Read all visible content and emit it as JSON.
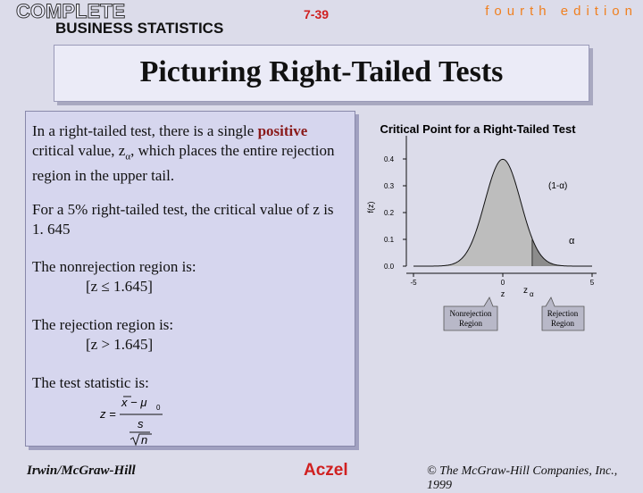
{
  "header": {
    "brand_line1": "COMPLETE",
    "brand_line2": "BUSINESS STATISTICS",
    "slide_number": "7-39",
    "edition": "fourth edition"
  },
  "title": "Picturing Right-Tailed Tests",
  "body": {
    "p1": [
      "In a right-tailed test, there is a single ",
      "positive",
      " critical value, z",
      "α",
      ", which places the entire rejection region in the upper tail."
    ],
    "p2": "For a 5% right-tailed test, the critical value of z is 1. 645",
    "p3": "The nonrejection region is:",
    "p3_rule": "[z ≤ 1.645]",
    "p4": "The rejection region is:",
    "p4_rule": "[z > 1.645]",
    "p5": "The test statistic is:"
  },
  "formula": {
    "lhs": "z =",
    "numerator": "x − μ",
    "numerator_sub": "0",
    "denominator": "s",
    "root": "n"
  },
  "figure": {
    "title": "Critical Point for a Right-Tailed Test",
    "y_label": "f(z)",
    "yticks": [
      {
        "value": 0,
        "label": "0.0"
      },
      {
        "value": 0.1,
        "label": "0.1"
      },
      {
        "value": 0.2,
        "label": "0.2"
      },
      {
        "value": 0.3,
        "label": "0.3"
      },
      {
        "value": 0.4,
        "label": "0.4"
      }
    ],
    "ylim": [
      0,
      0.48
    ],
    "xticks": [
      -5,
      0,
      5
    ],
    "xlim": [
      -5,
      5
    ],
    "critical_value": 1.645,
    "labels": {
      "nonrejection_area": "(1-α)",
      "rejection_area": "α",
      "x_axis": "z",
      "critical_point": "z",
      "critical_point_sub": "α"
    },
    "callouts": [
      [
        "Nonrejection",
        "Region"
      ],
      [
        "Rejection",
        "Region"
      ]
    ]
  },
  "footer": {
    "left": "Irwin/McGraw-Hill",
    "center": "Aczel",
    "right": "© The McGraw-Hill Companies, Inc., 1999"
  }
}
